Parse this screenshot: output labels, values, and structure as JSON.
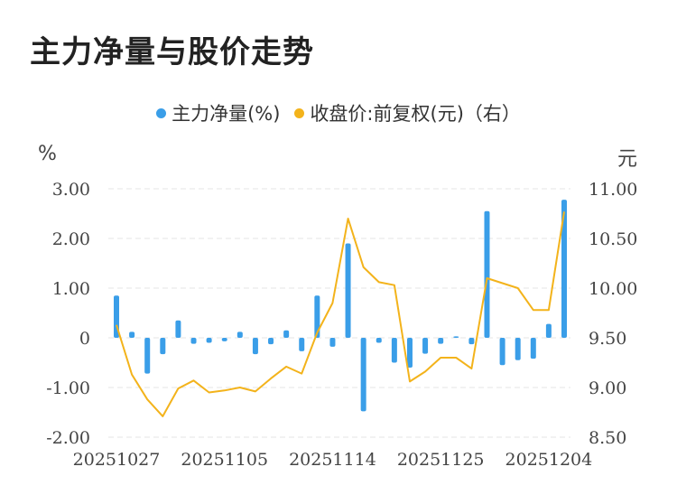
{
  "title": "主力净量与股价走势",
  "legend": {
    "series1": "主力净量(%)",
    "series2": "收盘价:前复权(元)（右）"
  },
  "units": {
    "left": "%",
    "right": "元"
  },
  "colors": {
    "bar": "#3a9ee8",
    "line": "#f3b31b",
    "grid": "#e6e6e6"
  },
  "chart_data": {
    "type": "bar+line",
    "title": "主力净量与股价走势",
    "x_tick_labels": [
      "20251027",
      "20251105",
      "20251114",
      "20251125",
      "20251204"
    ],
    "y_left_ticks": [
      "3.00",
      "2.00",
      "1.00",
      "0",
      "-1.00",
      "-2.00"
    ],
    "y_right_ticks": [
      "11.00",
      "10.50",
      "10.00",
      "9.50",
      "9.00",
      "8.50"
    ],
    "ylim_left": [
      -2,
      3
    ],
    "ylim_right": [
      8.5,
      11
    ],
    "series": [
      {
        "name": "主力净量(%)",
        "axis": "left",
        "kind": "bar",
        "values": [
          0.85,
          0.12,
          -0.72,
          -0.33,
          0.35,
          -0.12,
          -0.1,
          -0.07,
          0.12,
          -0.33,
          -0.13,
          0.15,
          -0.27,
          0.85,
          -0.18,
          1.9,
          -1.48,
          -0.1,
          -0.5,
          -0.6,
          -0.32,
          -0.12,
          0.03,
          -0.13,
          2.55,
          -0.55,
          -0.45,
          -0.42,
          0.28,
          2.78
        ]
      },
      {
        "name": "收盘价:前复权(元)（右）",
        "axis": "right",
        "kind": "line",
        "values": [
          9.63,
          9.13,
          8.88,
          8.71,
          8.99,
          9.07,
          8.95,
          8.97,
          9.0,
          8.96,
          9.09,
          9.21,
          9.14,
          9.55,
          9.85,
          10.7,
          10.21,
          10.06,
          10.03,
          9.06,
          9.16,
          9.3,
          9.3,
          9.19,
          10.1,
          10.05,
          10.0,
          9.78,
          9.78,
          10.77
        ]
      }
    ]
  }
}
